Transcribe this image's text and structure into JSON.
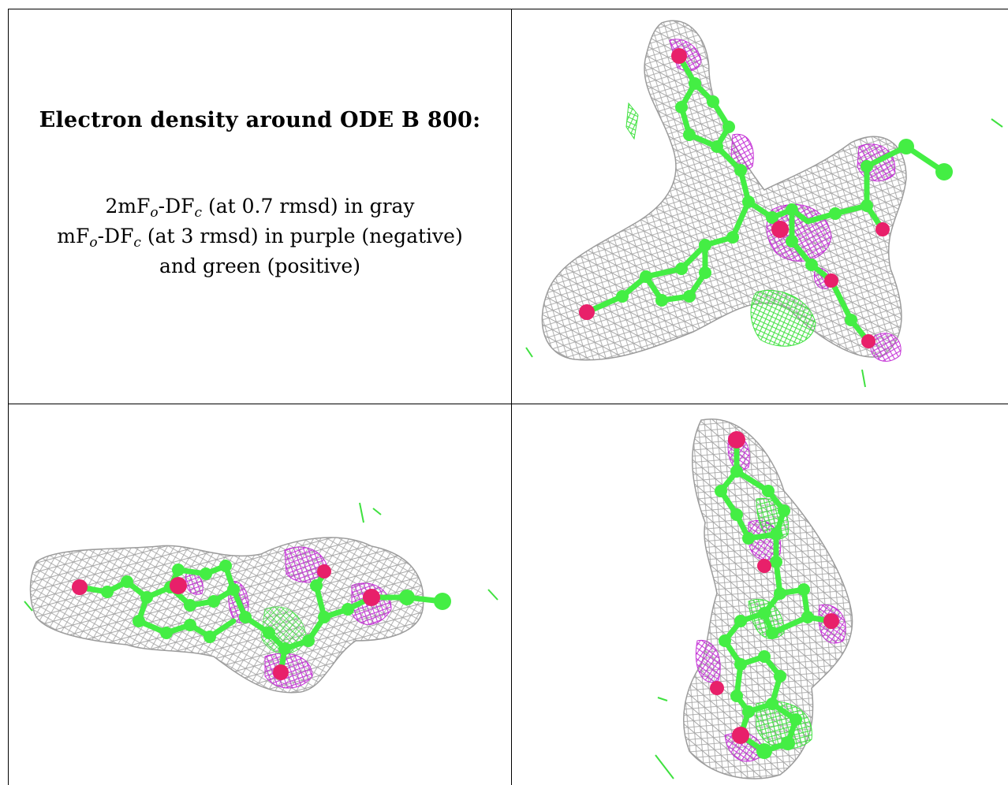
{
  "caption": {
    "title": "Electron density around ODE B 800:",
    "line1": {
      "a": "2mF",
      "o": "o",
      "b": "-DF",
      "c": "c",
      "d": " (at 0.7 rmsd) in gray"
    },
    "line2": {
      "a": "mF",
      "o": "o",
      "b": "-DF",
      "c": "c",
      "d": " (at 3 rmsd) in purple (negative)"
    },
    "line3": "and green (positive)"
  },
  "colors": {
    "gray_mesh": "#9c9c9c",
    "purple_mesh": "#c430d6",
    "green_mesh": "#3fe13f",
    "carbon": "#44ee44",
    "oxygen": "#e8206a",
    "border": "#000000"
  }
}
